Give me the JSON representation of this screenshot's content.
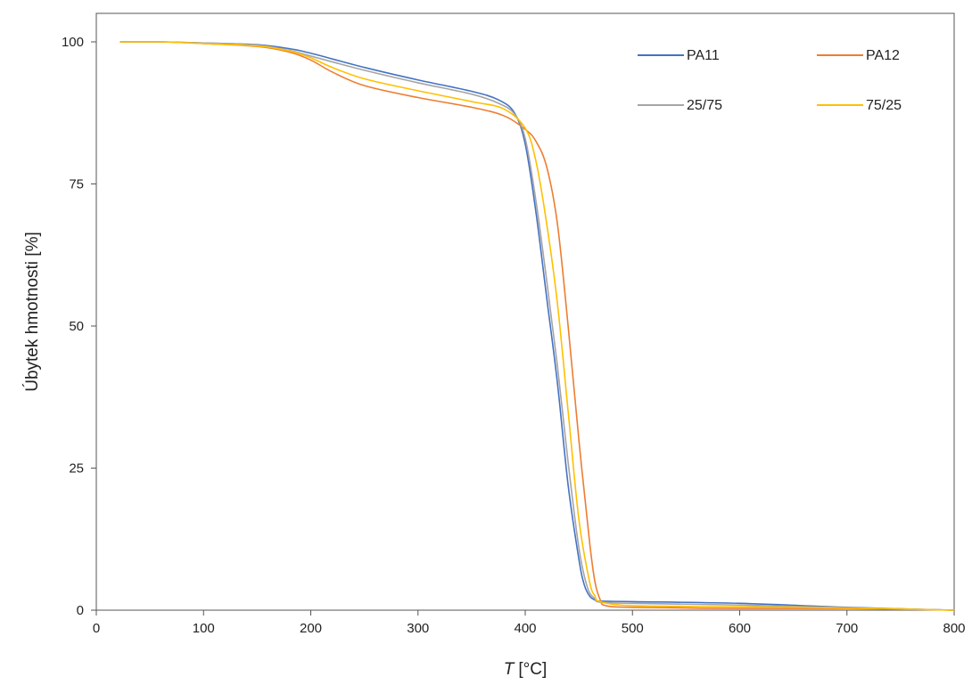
{
  "chart_data": {
    "type": "line",
    "title": "",
    "xlabel_symbol": "T",
    "xlabel_unit": "[°C]",
    "ylabel": "Úbytek hmotnosti  [%]",
    "xlim": [
      0,
      800
    ],
    "ylim": [
      0,
      105
    ],
    "x_ticks": [
      0,
      100,
      200,
      300,
      400,
      500,
      600,
      700,
      800
    ],
    "y_ticks": [
      0,
      25,
      50,
      75,
      100
    ],
    "grid": false,
    "legend_position": "top-right",
    "series": [
      {
        "name": "PA11",
        "color": "#4472C4",
        "x": [
          22,
          60,
          100,
          150,
          180,
          200,
          250,
          300,
          350,
          375,
          390,
          400,
          410,
          420,
          430,
          440,
          450,
          455,
          460,
          465,
          470,
          500,
          600,
          700,
          800
        ],
        "y": [
          100,
          100,
          99.8,
          99.5,
          98.8,
          98,
          95.5,
          93.3,
          91.3,
          89.8,
          87.5,
          82,
          70,
          55,
          40,
          22,
          9,
          4.5,
          2.5,
          1.8,
          1.6,
          1.5,
          1.2,
          0.5,
          0
        ]
      },
      {
        "name": "PA12",
        "color": "#ED7D31",
        "x": [
          22,
          60,
          100,
          150,
          180,
          200,
          220,
          250,
          300,
          350,
          380,
          400,
          410,
          420,
          430,
          440,
          450,
          460,
          465,
          470,
          475,
          500,
          600,
          700,
          800
        ],
        "y": [
          100,
          100,
          99.7,
          99.2,
          98.2,
          96.8,
          94.7,
          92.3,
          90.2,
          88.5,
          87,
          84.6,
          82.5,
          78,
          68,
          50,
          30,
          12,
          5,
          1.8,
          0.8,
          0.5,
          0.3,
          0.3,
          0
        ]
      },
      {
        "name": "25/75",
        "color": "#A5A5A5",
        "x": [
          22,
          60,
          100,
          150,
          180,
          200,
          250,
          300,
          350,
          375,
          390,
          400,
          410,
          420,
          430,
          440,
          450,
          458,
          465,
          470,
          500,
          600,
          700,
          800
        ],
        "y": [
          100,
          100,
          99.8,
          99.4,
          98.5,
          97.5,
          95,
          92.8,
          90.8,
          89.2,
          87.3,
          83,
          72,
          58,
          43,
          26,
          11,
          4,
          2,
          1.4,
          1.2,
          0.9,
          0.4,
          0
        ]
      },
      {
        "name": "75/25",
        "color": "#FFC000",
        "x": [
          22,
          60,
          100,
          150,
          180,
          200,
          220,
          250,
          300,
          350,
          380,
          400,
          410,
          420,
          430,
          440,
          450,
          460,
          465,
          470,
          500,
          600,
          700,
          800
        ],
        "y": [
          100,
          100,
          99.7,
          99.3,
          98.4,
          97.2,
          95.5,
          93.5,
          91.4,
          89.5,
          88.2,
          84.8,
          79,
          68,
          54,
          35,
          16,
          5,
          2.5,
          1.5,
          0.8,
          0.6,
          0.4,
          0
        ]
      }
    ]
  }
}
